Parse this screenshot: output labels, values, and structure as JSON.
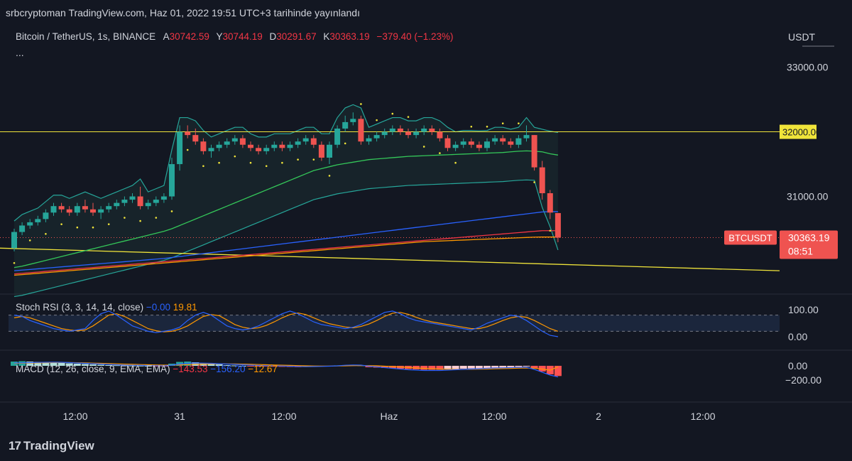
{
  "header": {
    "publish_text": "srbcryptoman TradingView.com, Haz 01, 2022 19:51 UTC+3 tarihinde yayınlandı"
  },
  "legend": {
    "symbol": "Bitcoin / TetherUS, 1s, BINANCE",
    "open_label": "A",
    "open": "30742.59",
    "high_label": "Y",
    "high": "30744.19",
    "low_label": "D",
    "low": "30291.67",
    "close_label": "K",
    "close": "30363.19",
    "change": "−379.40 (−1.23%)",
    "more": "..."
  },
  "axis": {
    "currency": "USDT",
    "price_ticks": [
      "33000.00",
      "31000.00"
    ],
    "level_label": "32000.00",
    "symbol_tag": "BTCUSDT",
    "last_price": "30363.19",
    "countdown": "08:51",
    "stoch_ticks": [
      "100.00",
      "0.00"
    ],
    "macd_ticks": [
      "0.00",
      "−200.00"
    ],
    "time_labels": [
      "12:00",
      "31",
      "12:00",
      "Haz",
      "12:00",
      "2",
      "12:00"
    ]
  },
  "stoch": {
    "title": "Stoch RSI (3, 3, 14, 14, close)",
    "k_value": "−0.00",
    "d_value": "19.81"
  },
  "macd": {
    "title": "MACD (12, 26, close, 9, EMA, EMA)",
    "hist_value": "−143.53",
    "macd_value": "−156.20",
    "signal_value": "−12.67"
  },
  "footer": {
    "brand": "TradingView",
    "mark": "17"
  },
  "colors": {
    "up": "#26a69a",
    "down": "#ef5350",
    "level": "#f0e43a",
    "background": "#131722"
  },
  "chart_data": {
    "type": "candlestick",
    "title": "Bitcoin / TetherUS, 1s, BINANCE",
    "ylim": [
      29500,
      33600
    ],
    "level": 32000,
    "candles": [
      [
        30200,
        30500,
        30150,
        30450
      ],
      [
        30450,
        30600,
        30400,
        30550
      ],
      [
        30550,
        30650,
        30500,
        30600
      ],
      [
        30600,
        30700,
        30550,
        30650
      ],
      [
        30650,
        30800,
        30600,
        30750
      ],
      [
        30750,
        30900,
        30700,
        30850
      ],
      [
        30850,
        30900,
        30750,
        30800
      ],
      [
        30800,
        30850,
        30700,
        30750
      ],
      [
        30750,
        30900,
        30700,
        30850
      ],
      [
        30850,
        30950,
        30750,
        30800
      ],
      [
        30800,
        30900,
        30700,
        30750
      ],
      [
        30750,
        30850,
        30650,
        30800
      ],
      [
        30800,
        30900,
        30750,
        30850
      ],
      [
        30850,
        30950,
        30800,
        30900
      ],
      [
        30900,
        31000,
        30850,
        30950
      ],
      [
        30950,
        31050,
        30900,
        31000
      ],
      [
        31000,
        31150,
        30800,
        30850
      ],
      [
        30850,
        30950,
        30800,
        30900
      ],
      [
        30900,
        31000,
        30850,
        30950
      ],
      [
        30950,
        31050,
        30900,
        31000
      ],
      [
        31000,
        31600,
        30950,
        31500
      ],
      [
        31500,
        32100,
        31400,
        32000
      ],
      [
        32000,
        32100,
        31900,
        31950
      ],
      [
        31950,
        32050,
        31800,
        31850
      ],
      [
        31850,
        31900,
        31650,
        31700
      ],
      [
        31700,
        31800,
        31600,
        31750
      ],
      [
        31750,
        31850,
        31700,
        31800
      ],
      [
        31800,
        31900,
        31750,
        31850
      ],
      [
        31850,
        31950,
        31800,
        31900
      ],
      [
        31900,
        31950,
        31750,
        31800
      ],
      [
        31800,
        31850,
        31700,
        31750
      ],
      [
        31750,
        31800,
        31650,
        31700
      ],
      [
        31700,
        31800,
        31650,
        31750
      ],
      [
        31750,
        31850,
        31700,
        31800
      ],
      [
        31800,
        31850,
        31700,
        31750
      ],
      [
        31750,
        31850,
        31700,
        31800
      ],
      [
        31800,
        31900,
        31750,
        31850
      ],
      [
        31850,
        31950,
        31800,
        31900
      ],
      [
        31900,
        31950,
        31750,
        31800
      ],
      [
        31800,
        31850,
        31550,
        31600
      ],
      [
        31600,
        31850,
        31500,
        31800
      ],
      [
        31800,
        32100,
        31750,
        32050
      ],
      [
        32050,
        32250,
        32000,
        32150
      ],
      [
        32150,
        32300,
        32100,
        32200
      ],
      [
        32200,
        32250,
        31800,
        31850
      ],
      [
        31850,
        31950,
        31800,
        31900
      ],
      [
        31900,
        32000,
        31850,
        31950
      ],
      [
        31950,
        32050,
        31900,
        32000
      ],
      [
        32000,
        32100,
        31950,
        32050
      ],
      [
        32050,
        32100,
        31950,
        32000
      ],
      [
        32000,
        32050,
        31900,
        31950
      ],
      [
        31950,
        32050,
        31900,
        32000
      ],
      [
        32000,
        32100,
        31950,
        32050
      ],
      [
        32050,
        32100,
        31950,
        32000
      ],
      [
        32000,
        32050,
        31850,
        31900
      ],
      [
        31900,
        31950,
        31700,
        31750
      ],
      [
        31750,
        31850,
        31700,
        31800
      ],
      [
        31800,
        31900,
        31750,
        31850
      ],
      [
        31850,
        31900,
        31750,
        31800
      ],
      [
        31800,
        31850,
        31700,
        31750
      ],
      [
        31750,
        31900,
        31700,
        31850
      ],
      [
        31850,
        31950,
        31800,
        31900
      ],
      [
        31900,
        31950,
        31800,
        31850
      ],
      [
        31850,
        31900,
        31750,
        31800
      ],
      [
        31800,
        31950,
        31750,
        31900
      ],
      [
        31900,
        32100,
        31850,
        31950
      ],
      [
        31950,
        31950,
        31400,
        31450
      ],
      [
        31450,
        31550,
        30950,
        31050
      ],
      [
        31050,
        31100,
        30650,
        30750
      ],
      [
        30742.59,
        30744.19,
        30291.67,
        30363.19
      ]
    ],
    "series": [
      {
        "name": "MA (green)",
        "color": "#34c759",
        "values": [
          29900,
          29920,
          29950,
          29980,
          30010,
          30040,
          30070,
          30100,
          30130,
          30160,
          30190,
          30220,
          30250,
          30280,
          30310,
          30340,
          30370,
          30400,
          30430,
          30460,
          30500,
          30550,
          30600,
          30650,
          30700,
          30750,
          30800,
          30850,
          30900,
          30950,
          31000,
          31050,
          31100,
          31150,
          31200,
          31250,
          31300,
          31350,
          31400,
          31430,
          31460,
          31490,
          31510,
          31530,
          31550,
          31570,
          31580,
          31590,
          31600,
          31610,
          31620,
          31625,
          31630,
          31635,
          31640,
          31645,
          31650,
          31655,
          31660,
          31665,
          31670,
          31675,
          31680,
          31690,
          31700,
          31705,
          31700,
          31690,
          31660,
          31640
        ]
      },
      {
        "name": "MA (blue)",
        "color": "#2962ff",
        "values": [
          29850,
          29860,
          29870,
          29880,
          29890,
          29900,
          29910,
          29920,
          29930,
          29940,
          29950,
          29960,
          29970,
          29980,
          29990,
          30000,
          30010,
          30020,
          30030,
          30040,
          30055,
          30070,
          30085,
          30100,
          30115,
          30130,
          30145,
          30160,
          30175,
          30190,
          30205,
          30220,
          30235,
          30250,
          30265,
          30280,
          30295,
          30310,
          30325,
          30340,
          30355,
          30370,
          30385,
          30400,
          30415,
          30430,
          30445,
          30460,
          30475,
          30490,
          30505,
          30520,
          30535,
          30550,
          30565,
          30580,
          30595,
          30610,
          30625,
          30640,
          30655,
          30670,
          30685,
          30700,
          30715,
          30730,
          30745,
          30760,
          30765,
          30765
        ]
      },
      {
        "name": "MA (red)",
        "color": "#f23645",
        "values": [
          29800,
          29810,
          29820,
          29830,
          29840,
          29850,
          29860,
          29870,
          29880,
          29890,
          29900,
          29910,
          29920,
          29930,
          29940,
          29950,
          29960,
          29970,
          29980,
          29990,
          30000,
          30010,
          30020,
          30030,
          30040,
          30050,
          30060,
          30070,
          30080,
          30090,
          30100,
          30110,
          30120,
          30130,
          30140,
          30150,
          30160,
          30170,
          30180,
          30190,
          30200,
          30210,
          30220,
          30230,
          30240,
          30250,
          30260,
          30270,
          30280,
          30290,
          30300,
          30310,
          30320,
          30330,
          30340,
          30350,
          30360,
          30370,
          30380,
          30390,
          30400,
          30410,
          30420,
          30430,
          30440,
          30450,
          30460,
          30470,
          30470,
          30470
        ]
      },
      {
        "name": "MA (orange)",
        "color": "#ff9800",
        "values": [
          29780,
          29790,
          29800,
          29810,
          29820,
          29830,
          29840,
          29850,
          29860,
          29870,
          29880,
          29890,
          29900,
          29910,
          29920,
          29930,
          29940,
          29950,
          29960,
          29970,
          29980,
          29990,
          30000,
          30010,
          30020,
          30030,
          30040,
          30050,
          30060,
          30070,
          30080,
          30090,
          30100,
          30110,
          30120,
          30130,
          30140,
          30150,
          30160,
          30170,
          30180,
          30190,
          30200,
          30210,
          30220,
          30230,
          30240,
          30250,
          30260,
          30270,
          30280,
          30290,
          30300,
          30305,
          30310,
          30315,
          30320,
          30325,
          30330,
          30335,
          30340,
          30345,
          30350,
          30355,
          30360,
          30365,
          30370,
          30372,
          30372,
          30372
        ]
      }
    ],
    "trend_line": {
      "color": "#f0e43a",
      "start": 30200,
      "end": 29850
    },
    "stoch_k": [
      80,
      75,
      60,
      50,
      40,
      30,
      25,
      20,
      25,
      30,
      60,
      85,
      95,
      80,
      60,
      40,
      30,
      20,
      15,
      20,
      25,
      35,
      60,
      80,
      90,
      80,
      60,
      40,
      30,
      25,
      30,
      40,
      55,
      70,
      85,
      95,
      85,
      70,
      55,
      45,
      40,
      35,
      30,
      35,
      45,
      60,
      75,
      90,
      95,
      85,
      70,
      60,
      55,
      50,
      45,
      40,
      35,
      30,
      25,
      35,
      50,
      60,
      70,
      80,
      75,
      60,
      40,
      20,
      5,
      0
    ],
    "stoch_d": [
      70,
      75,
      70,
      60,
      50,
      40,
      30,
      25,
      22,
      25,
      40,
      60,
      80,
      85,
      75,
      60,
      45,
      30,
      22,
      18,
      20,
      28,
      40,
      58,
      75,
      82,
      78,
      62,
      45,
      35,
      30,
      33,
      42,
      55,
      70,
      82,
      88,
      82,
      70,
      58,
      48,
      42,
      36,
      33,
      38,
      47,
      60,
      75,
      87,
      90,
      83,
      72,
      62,
      55,
      50,
      45,
      40,
      35,
      30,
      30,
      37,
      48,
      60,
      70,
      75,
      72,
      60,
      45,
      30,
      20
    ],
    "macd_hist": [
      60,
      65,
      60,
      55,
      50,
      45,
      40,
      35,
      30,
      25,
      20,
      15,
      10,
      8,
      6,
      4,
      2,
      0,
      -2,
      -4,
      30,
      55,
      60,
      50,
      40,
      30,
      20,
      10,
      5,
      0,
      -5,
      -8,
      -10,
      -12,
      -14,
      -16,
      -18,
      -14,
      -10,
      -6,
      -2,
      6,
      10,
      12,
      8,
      -20,
      -25,
      -30,
      -35,
      -40,
      -45,
      -50,
      -55,
      -55,
      -55,
      -50,
      -45,
      -40,
      -38,
      -35,
      -30,
      -28,
      -25,
      -20,
      -15,
      -10,
      -40,
      -80,
      -120,
      -143.53
    ],
    "macd_line": [
      40,
      42,
      45,
      48,
      50,
      52,
      50,
      45,
      40,
      35,
      30,
      25,
      20,
      15,
      10,
      8,
      6,
      4,
      2,
      0,
      10,
      25,
      35,
      40,
      38,
      35,
      30,
      25,
      20,
      15,
      10,
      5,
      2,
      0,
      -3,
      -6,
      -10,
      -12,
      -10,
      -8,
      -5,
      0,
      8,
      12,
      10,
      -5,
      -15,
      -25,
      -35,
      -45,
      -55,
      -60,
      -65,
      -65,
      -65,
      -60,
      -55,
      -50,
      -45,
      -40,
      -35,
      -30,
      -28,
      -25,
      -22,
      -20,
      -50,
      -90,
      -130,
      -156.2
    ],
    "signal_line": [
      35,
      37,
      40,
      42,
      44,
      46,
      47,
      46,
      44,
      41,
      38,
      35,
      32,
      28,
      24,
      21,
      18,
      15,
      12,
      10,
      10,
      13,
      17,
      22,
      25,
      27,
      28,
      27,
      26,
      24,
      21,
      18,
      15,
      12,
      9,
      6,
      3,
      0,
      -2,
      -3,
      -3,
      -2,
      0,
      2,
      4,
      3,
      0,
      -5,
      -11,
      -17,
      -24,
      -30,
      -36,
      -41,
      -45,
      -48,
      -50,
      -50,
      -49,
      -47,
      -45,
      -42,
      -39,
      -36,
      -33,
      -30,
      -34,
      -45,
      -62,
      -12.67
    ]
  }
}
